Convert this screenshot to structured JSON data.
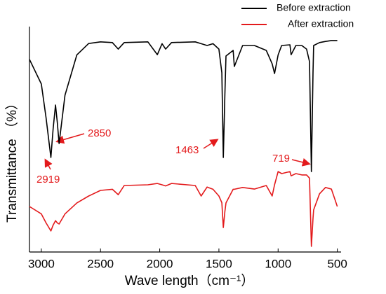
{
  "chart_data": {
    "type": "line",
    "x_label": "Wave length（cm⁻¹）",
    "y_label": "Transmittance （%）",
    "annotations": [
      "2919",
      "2850",
      "1463",
      "719"
    ],
    "xlim": [
      3100,
      480
    ],
    "xticks": [
      3000,
      2500,
      2000,
      1500,
      1000,
      500
    ],
    "ylim": [
      0,
      100
    ],
    "x": [
      3100,
      3000,
      2960,
      2919,
      2900,
      2880,
      2865,
      2850,
      2800,
      2700,
      2600,
      2500,
      2400,
      2350,
      2300,
      2100,
      2020,
      1980,
      1950,
      1900,
      1700,
      1650,
      1600,
      1550,
      1500,
      1475,
      1463,
      1450,
      1440,
      1380,
      1370,
      1300,
      1200,
      1100,
      1050,
      1030,
      1000,
      970,
      900,
      890,
      850,
      800,
      760,
      735,
      719,
      705,
      700,
      650,
      600,
      550,
      520,
      500
    ],
    "series": [
      {
        "name": "Before extraction",
        "color": "#000000",
        "values": [
          86,
          75,
          60,
          42.2,
          55,
          65.6,
          58,
          48.4,
          70,
          88,
          93.1,
          93.8,
          93.5,
          90.6,
          93.5,
          93.8,
          88.1,
          93,
          90.6,
          93.5,
          93.8,
          93,
          92.2,
          93,
          90.6,
          80,
          42.2,
          70,
          87.5,
          90,
          82.8,
          92.2,
          92.2,
          90,
          84,
          79.7,
          88,
          92.2,
          92.5,
          88.1,
          92.2,
          92.2,
          90.6,
          85,
          35.9,
          80,
          92.2,
          93.5,
          94,
          94.4,
          94.4,
          94.4
        ]
      },
      {
        "name": "After extraction",
        "color": "#e31a1c",
        "values": [
          20.3,
          17,
          13,
          9.4,
          12,
          14,
          13,
          12.5,
          17,
          21.9,
          25,
          27.5,
          28,
          25.6,
          29.7,
          30,
          30.6,
          30,
          29.5,
          30.6,
          29.7,
          25,
          29,
          28,
          25,
          22,
          10.9,
          18,
          21.9,
          28,
          28,
          28.8,
          28.1,
          29.7,
          25,
          30,
          35.9,
          35,
          35.9,
          34,
          35,
          34.4,
          34.4,
          33,
          2.5,
          15,
          18.8,
          26,
          28.8,
          28.1,
          23.4,
          20.3
        ]
      }
    ]
  }
}
